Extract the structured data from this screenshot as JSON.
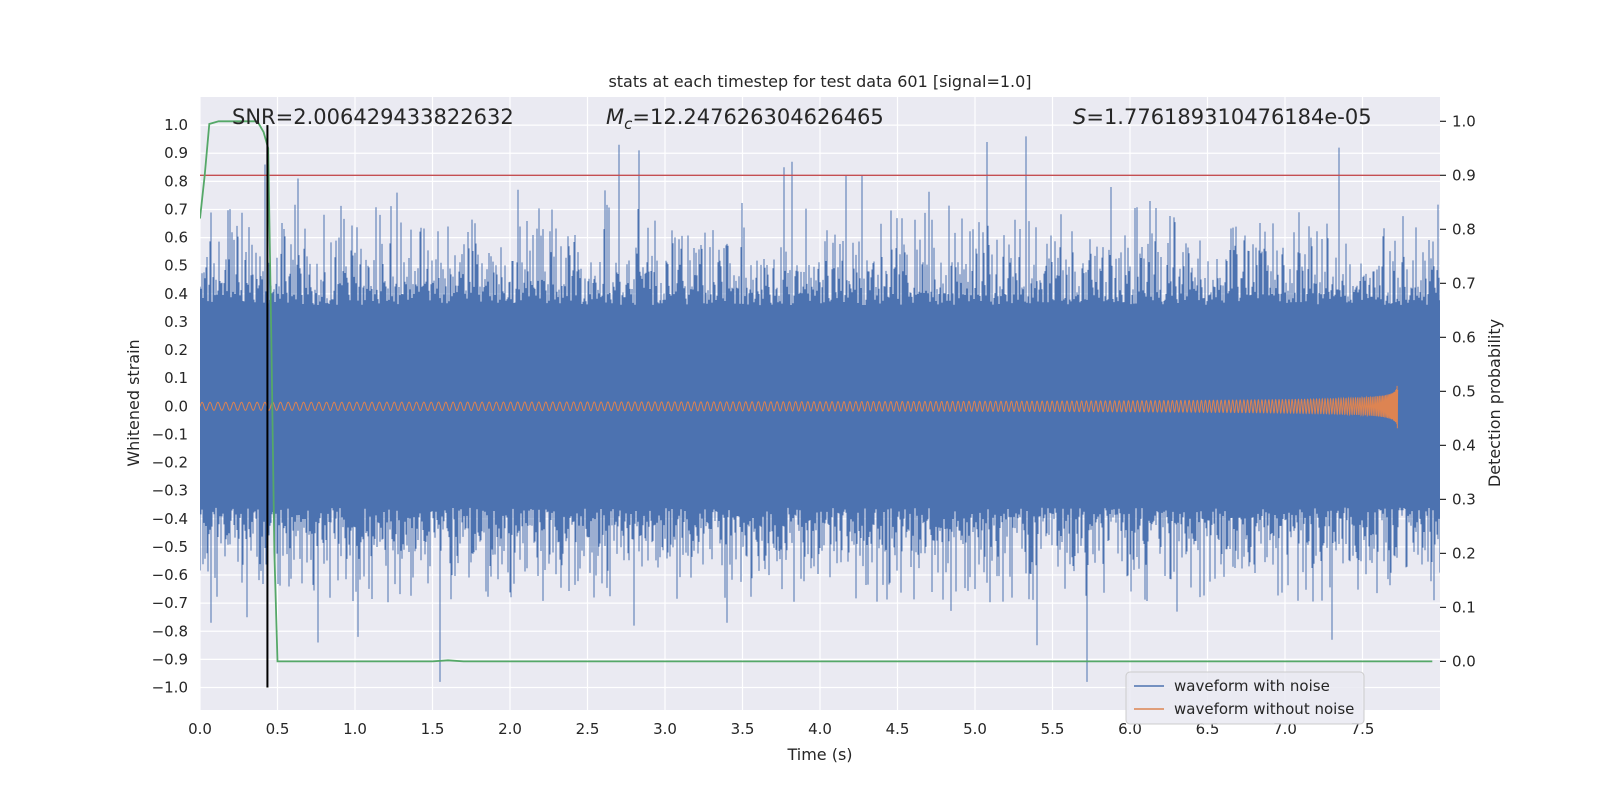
{
  "chart_data": {
    "type": "line",
    "title": "stats at each timestep for test data 601 [signal=1.0]",
    "xlabel": "Time (s)",
    "ylabel_left": "Whitened strain",
    "ylabel_right": "Detection probability",
    "xlim": [
      0.0,
      8.0
    ],
    "ylim_left": [
      -1.08,
      1.1
    ],
    "ylim_right": [
      -0.09,
      1.045
    ],
    "xticks": [
      "0.0",
      "0.5",
      "1.0",
      "1.5",
      "2.0",
      "2.5",
      "3.0",
      "3.5",
      "4.0",
      "4.5",
      "5.0",
      "5.5",
      "6.0",
      "6.5",
      "7.0",
      "7.5"
    ],
    "xtick_values": [
      0.0,
      0.5,
      1.0,
      1.5,
      2.0,
      2.5,
      3.0,
      3.5,
      4.0,
      4.5,
      5.0,
      5.5,
      6.0,
      6.5,
      7.0,
      7.5
    ],
    "yticks_left": [
      "1.0",
      "0.9",
      "0.8",
      "0.7",
      "0.6",
      "0.5",
      "0.4",
      "0.3",
      "0.2",
      "0.1",
      "0.0",
      "−0.1",
      "−0.2",
      "−0.3",
      "−0.4",
      "−0.5",
      "−0.6",
      "−0.7",
      "−0.8",
      "−0.9",
      "−1.0"
    ],
    "ytick_values_left": [
      1.0,
      0.9,
      0.8,
      0.7,
      0.6,
      0.5,
      0.4,
      0.3,
      0.2,
      0.1,
      0.0,
      -0.1,
      -0.2,
      -0.3,
      -0.4,
      -0.5,
      -0.6,
      -0.7,
      -0.8,
      -0.9,
      -1.0
    ],
    "yticks_right": [
      "1.0",
      "0.9",
      "0.8",
      "0.7",
      "0.6",
      "0.5",
      "0.4",
      "0.3",
      "0.2",
      "0.1",
      "0.0"
    ],
    "ytick_values_right": [
      1.0,
      0.9,
      0.8,
      0.7,
      0.6,
      0.5,
      0.4,
      0.3,
      0.2,
      0.1,
      0.0
    ],
    "annotations": {
      "snr": "SNR=2.006429433822632",
      "mc_prefix": "M",
      "mc_sub": "c",
      "mc_value": "=12.247626304626465",
      "s_prefix": "S",
      "s_value": "=1.776189310476184e-05"
    },
    "series": [
      {
        "name": "waveform with noise",
        "color": "#4c72b0",
        "description": "dense noisy whitened strain, roughly ±0.4 band with spikes up to ~0.92 and down to ~-0.98",
        "spikes_up": [
          [
            0.42,
            0.86
          ],
          [
            0.63,
            0.81
          ],
          [
            1.27,
            0.76
          ],
          [
            2.05,
            0.77
          ],
          [
            2.7,
            0.93
          ],
          [
            2.83,
            0.91
          ],
          [
            3.77,
            0.85
          ],
          [
            3.82,
            0.87
          ],
          [
            4.17,
            0.82
          ],
          [
            4.27,
            0.82
          ],
          [
            5.08,
            0.94
          ],
          [
            5.33,
            0.96
          ],
          [
            5.88,
            0.78
          ],
          [
            6.13,
            0.73
          ],
          [
            7.35,
            0.92
          ]
        ],
        "spikes_down": [
          [
            0.07,
            -0.77
          ],
          [
            0.3,
            -0.75
          ],
          [
            0.76,
            -0.84
          ],
          [
            1.02,
            -0.82
          ],
          [
            1.55,
            -0.98
          ],
          [
            2.8,
            -0.78
          ],
          [
            3.4,
            -0.77
          ],
          [
            5.4,
            -0.85
          ],
          [
            5.72,
            -0.98
          ],
          [
            6.3,
            -0.73
          ],
          [
            7.3,
            -0.83
          ]
        ]
      },
      {
        "name": "waveform without noise",
        "color": "#dd8452",
        "description": "clean chirp signal growing in amplitude toward merger at ~7.73 s",
        "merger_time": 7.73,
        "peak_amplitude": 0.09,
        "min_amplitude": -0.1
      },
      {
        "name": "detection probability",
        "color": "#55a868",
        "axis": "right",
        "x": [
          0.0,
          0.03,
          0.06,
          0.12,
          0.2,
          0.3,
          0.37,
          0.41,
          0.44,
          0.46,
          0.48,
          0.5,
          1.0,
          1.5,
          1.6,
          1.7,
          2.0,
          7.95
        ],
        "y": [
          0.82,
          0.9,
          0.995,
          1.0,
          1.0,
          1.0,
          1.0,
          0.98,
          0.95,
          0.6,
          0.2,
          0.0,
          0.0,
          0.0,
          0.002,
          0.0,
          0.0,
          0.0
        ]
      }
    ],
    "hlines": [
      {
        "name": "threshold",
        "axis": "right",
        "value": 0.9,
        "color": "#c44e52"
      }
    ],
    "vlines": [
      {
        "name": "detection-time",
        "x": 0.435,
        "color": "#000000",
        "ymin": -1.0,
        "ymax": 1.0
      }
    ],
    "legend": {
      "position": "lower-right",
      "entries": [
        {
          "label": "waveform with noise",
          "color": "#4c72b0"
        },
        {
          "label": "waveform without noise",
          "color": "#dd8452"
        }
      ]
    },
    "style": {
      "axes_bg": "#eaeaf2",
      "grid_color": "#ffffff",
      "grid": true
    }
  }
}
